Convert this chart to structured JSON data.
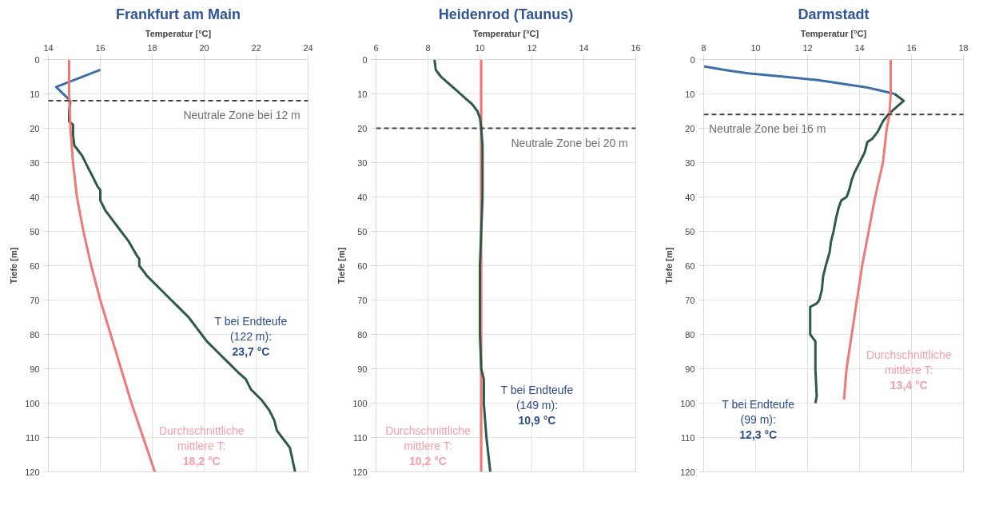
{
  "chart_data": [
    {
      "type": "line",
      "title": "Frankfurt am Main",
      "xlabel": "Temperatur [°C]",
      "ylabel": "Tiefe [m]",
      "xlim": [
        14,
        24
      ],
      "xticks": [
        14,
        16,
        18,
        20,
        22,
        24
      ],
      "ylim": [
        120,
        0
      ],
      "yticks": [
        0,
        10,
        20,
        30,
        40,
        50,
        60,
        70,
        80,
        90,
        100,
        110,
        120
      ],
      "grid": true,
      "series": [
        {
          "color": "#3d6fa8",
          "x": [
            16,
            14.3,
            14.85
          ],
          "values": [
            3,
            8,
            12
          ]
        },
        {
          "color": "#2d5a45",
          "x": [
            14.85,
            14.8,
            14.8,
            14.95,
            14.95,
            15.0,
            15.3,
            15.5,
            15.7,
            15.9,
            16.0,
            16.0,
            16.2,
            16.5,
            16.8,
            17.1,
            17.4,
            17.5,
            17.5,
            17.8,
            18.2,
            18.6,
            19.0,
            19.4,
            19.7,
            19.9,
            20.1,
            20.5,
            20.9,
            21.3,
            21.6,
            21.8,
            22.2,
            22.5,
            22.7,
            22.8,
            23.0,
            23.3,
            23.5
          ],
          "values": [
            12,
            15,
            18,
            19,
            22,
            25,
            28,
            31,
            34,
            37,
            38,
            41,
            44,
            47,
            50,
            53,
            57,
            58,
            60,
            63,
            66,
            69,
            72,
            75,
            78,
            80,
            82,
            85,
            88,
            91,
            93,
            96,
            99,
            102,
            105,
            108,
            110,
            113,
            120
          ]
        },
        {
          "color": "#f07878",
          "x": [
            14.8,
            14.8,
            14.85,
            14.95,
            15.1,
            15.35,
            15.65,
            16.0,
            16.4,
            16.8,
            17.2,
            17.65,
            18.1
          ],
          "values": [
            0,
            10,
            20,
            30,
            40,
            50,
            60,
            70,
            80,
            90,
            100,
            110,
            120
          ]
        }
      ],
      "ref_lines": [
        {
          "axis": "y",
          "value": 12,
          "label": "Neutrale Zone bei 12 m",
          "color": "#404040",
          "line_style": "dashed"
        }
      ],
      "annotations": [
        "T bei Endteufe\n(122 m):\n23,7 °C",
        "Durchschnittliche\nmittlere T:\n18,2 °C"
      ]
    },
    {
      "type": "line",
      "title": "Heidenrod (Taunus)",
      "xlabel": "Temperatur [°C]",
      "ylabel": "Tiefe [m]",
      "xlim": [
        6,
        16
      ],
      "xticks": [
        6,
        8,
        10,
        12,
        14,
        16
      ],
      "ylim": [
        120,
        0
      ],
      "yticks": [
        0,
        10,
        20,
        30,
        40,
        50,
        60,
        70,
        80,
        90,
        100,
        110,
        120
      ],
      "grid": true,
      "series": [
        {
          "color": "#f07878",
          "x": [
            10.05,
            10.05
          ],
          "values": [
            0,
            120
          ]
        },
        {
          "color": "#2d5a45",
          "x": [
            8.25,
            8.3,
            8.5,
            8.8,
            9.1,
            9.4,
            9.7,
            9.9,
            10.0,
            10.05,
            10.1,
            10.1,
            10.1,
            10.05,
            10.0,
            10.0,
            10.0,
            10.05,
            10.15,
            10.15,
            10.25,
            10.4
          ],
          "values": [
            0,
            3,
            5,
            7,
            9,
            11,
            13,
            15,
            17,
            20,
            25,
            30,
            40,
            50,
            60,
            70,
            80,
            90,
            93,
            100,
            110,
            120
          ]
        }
      ],
      "ref_lines": [
        {
          "axis": "y",
          "value": 20,
          "label": "Neutrale Zone bei 20 m",
          "color": "#404040",
          "line_style": "dashed"
        }
      ],
      "annotations": [
        "T bei Endteufe\n(149 m):\n10,9 °C",
        "Durchschnittliche\nmittlere T:\n10,2 °C"
      ]
    },
    {
      "type": "line",
      "title": "Darmstadt",
      "xlabel": "Temperatur [°C]",
      "ylabel": "Tiefe [m]",
      "xlim": [
        8,
        18
      ],
      "xticks": [
        8,
        10,
        12,
        14,
        16,
        18
      ],
      "ylim": [
        120,
        0
      ],
      "yticks": [
        0,
        10,
        20,
        30,
        40,
        50,
        60,
        70,
        80,
        90,
        100,
        110,
        120
      ],
      "grid": true,
      "series": [
        {
          "color": "#3d6fa8",
          "x": [
            8.0,
            8.8,
            9.7,
            11.1,
            12.4,
            14.2,
            14.8,
            15.35
          ],
          "values": [
            2,
            3,
            4,
            5,
            6,
            8,
            9,
            10
          ]
        },
        {
          "color": "#2d5a45",
          "x": [
            15.35,
            15.7,
            15.4,
            15.1,
            14.9,
            14.7,
            14.5,
            14.3,
            14.2,
            14.0,
            13.8,
            13.7,
            13.6,
            13.5,
            13.3,
            13.2,
            13.1,
            13.0,
            12.9,
            12.85,
            12.7,
            12.6,
            12.55,
            12.45,
            12.35,
            12.1,
            12.1,
            12.3,
            12.3,
            12.35,
            12.3
          ],
          "values": [
            10,
            12,
            14,
            16,
            18,
            21,
            23,
            24,
            27,
            30,
            33,
            35,
            38,
            40,
            41,
            43,
            46,
            50,
            53,
            56,
            60,
            63,
            67,
            70,
            71,
            72,
            80,
            82,
            90,
            98,
            100
          ]
        },
        {
          "color": "#f07878",
          "x": [
            15.2,
            15.2,
            15.15,
            15.05,
            14.9,
            14.6,
            14.35,
            14.1,
            13.9,
            13.7,
            13.5,
            13.4
          ],
          "values": [
            0,
            10,
            16,
            20,
            30,
            40,
            50,
            60,
            70,
            80,
            90,
            99
          ]
        }
      ],
      "ref_lines": [
        {
          "axis": "y",
          "value": 16,
          "label": "Neutrale Zone bei 16 m",
          "color": "#404040",
          "line_style": "dashed"
        }
      ],
      "annotations": [
        "T bei Endteufe\n(99 m):\n12,3 °C",
        "Durchschnittliche\nmittlere T:\n13,4 °C"
      ]
    }
  ]
}
